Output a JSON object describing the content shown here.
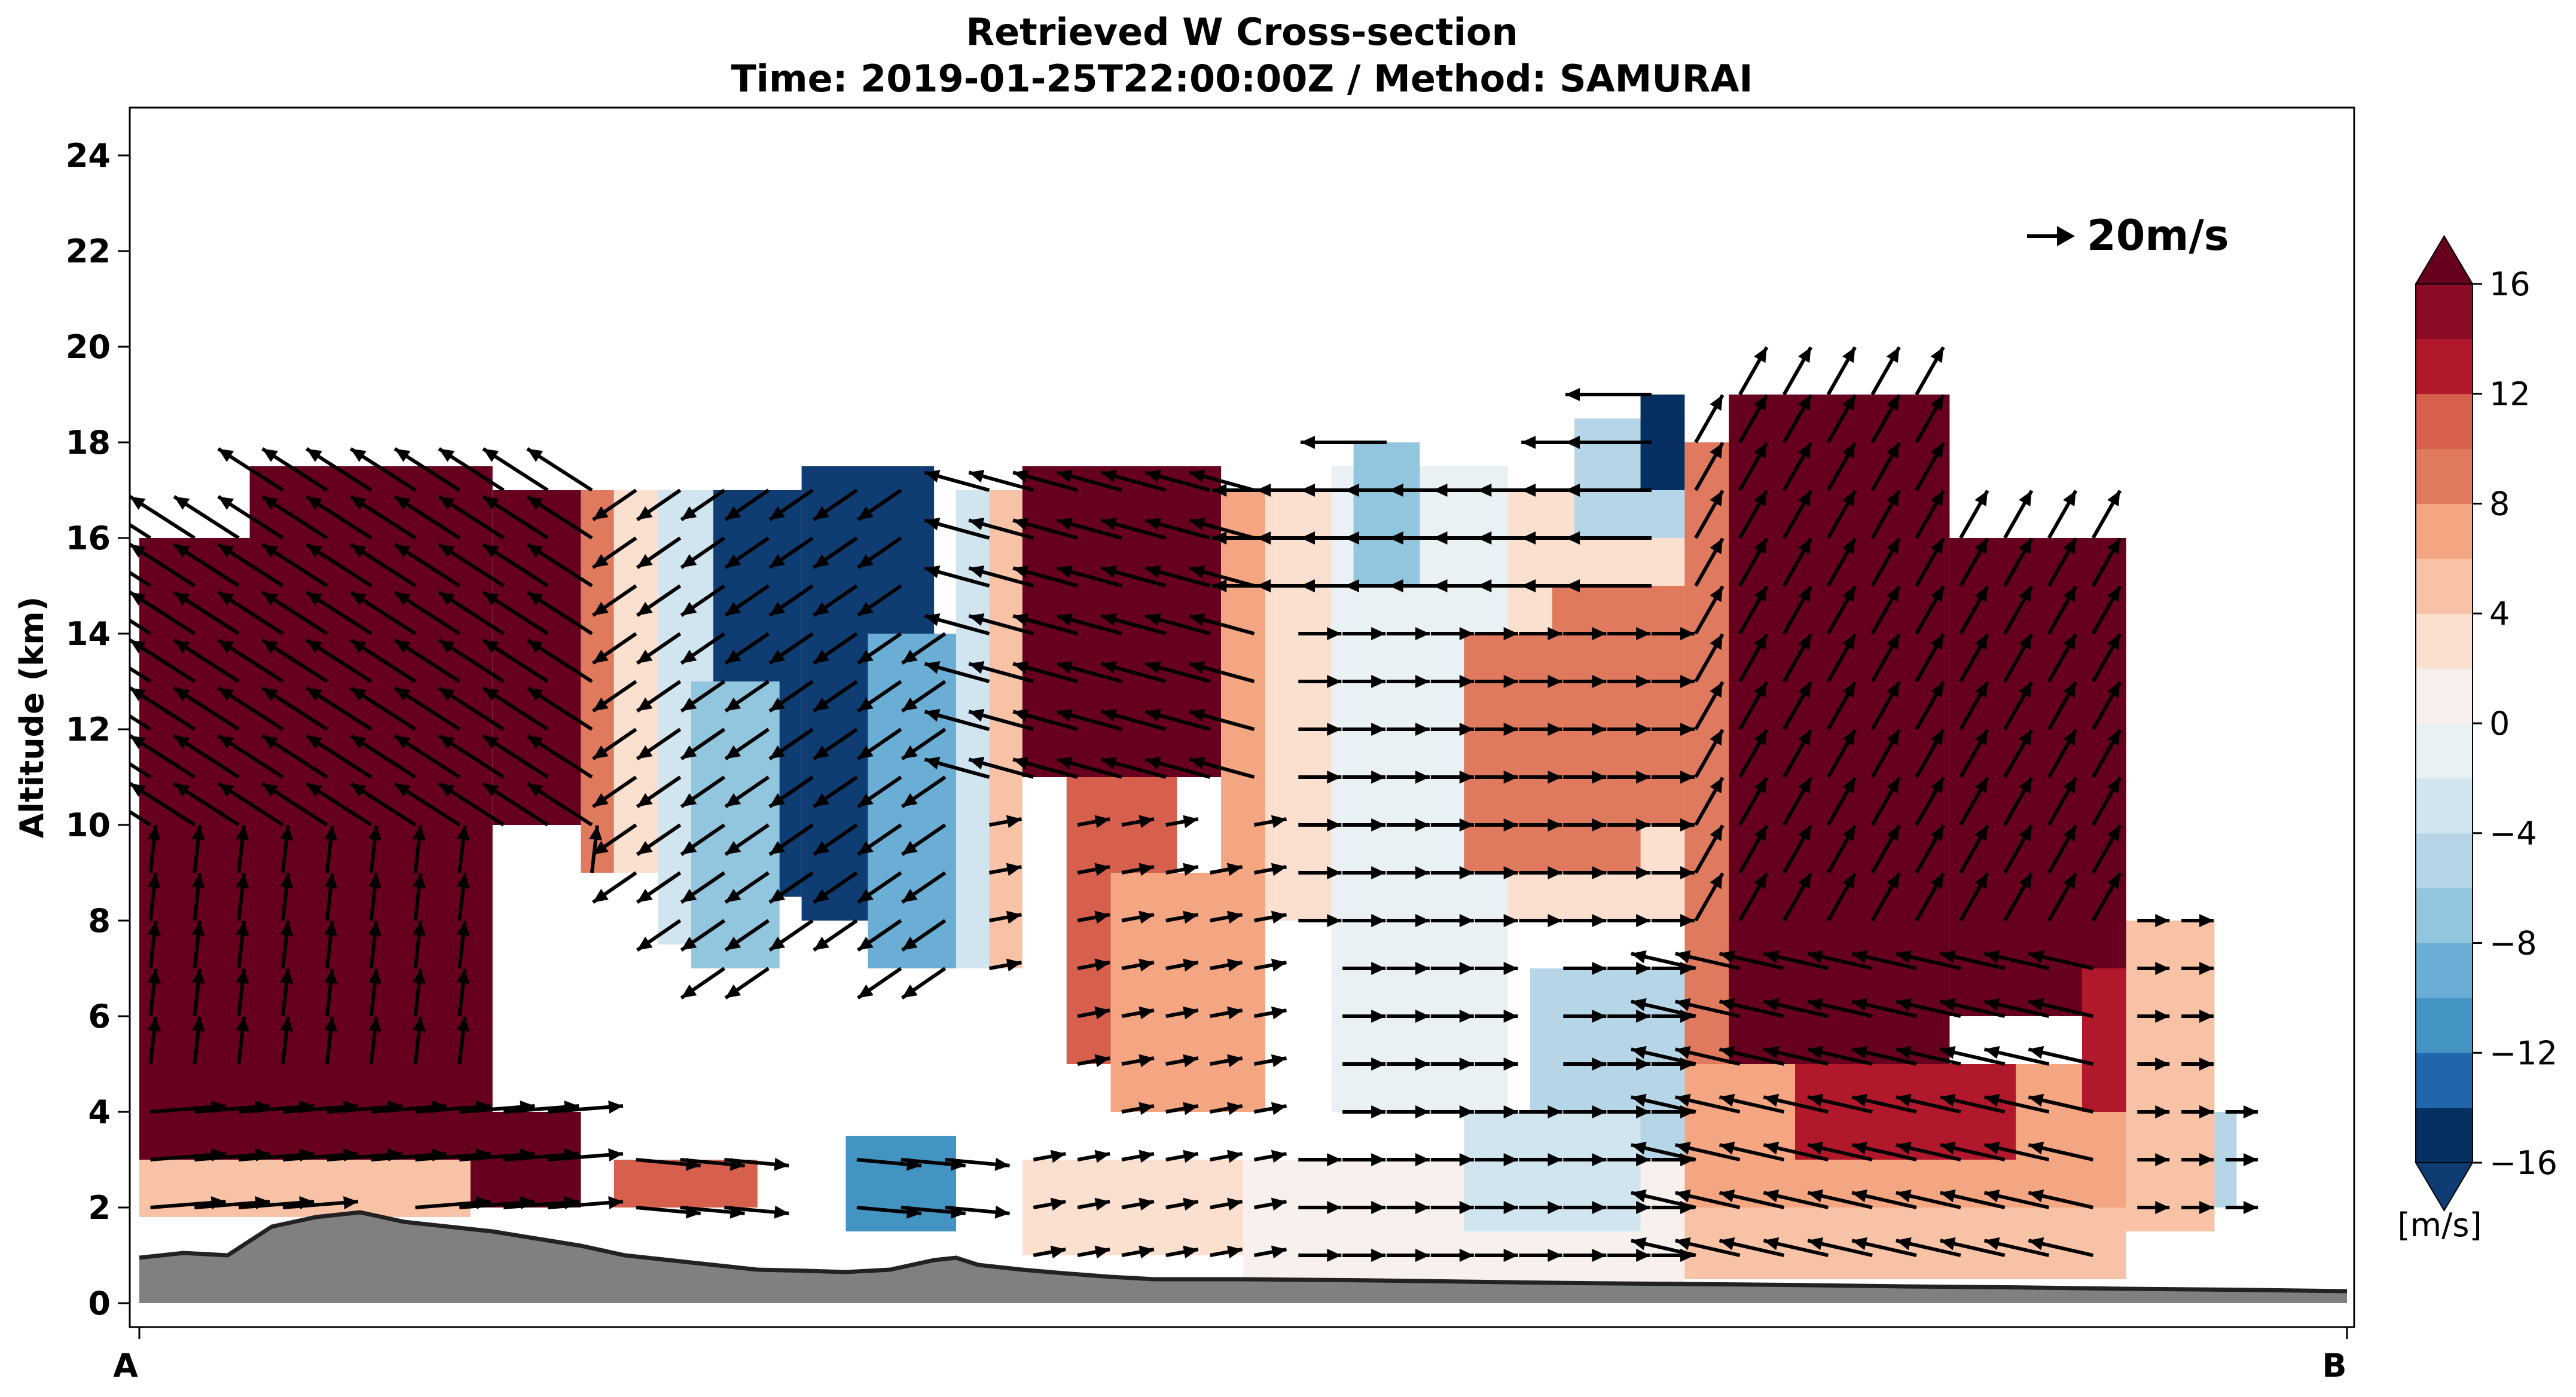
{
  "chart_data": {
    "type": "heatmap",
    "title": "Retrieved W Cross-section",
    "subtitle": "Time: 2019-01-25T22:00:00Z / Method: SAMURAI",
    "xlabel": "",
    "ylabel": "Altitude (km)",
    "x_tick_labels": [
      "A",
      "B"
    ],
    "xlim": [
      0,
      1
    ],
    "ylim": [
      -0.5,
      25
    ],
    "y_ticks": [
      0,
      2,
      4,
      6,
      8,
      10,
      12,
      14,
      16,
      18,
      20,
      22,
      24
    ],
    "grid": false,
    "colorbar": {
      "label": "[m/s]",
      "levels": [
        -16,
        -14,
        -12,
        -10,
        -8,
        -6,
        -4,
        -2,
        0,
        2,
        4,
        6,
        8,
        10,
        12,
        14,
        16
      ],
      "tick_values": [
        -16,
        -12,
        -8,
        -4,
        0,
        4,
        8,
        12,
        16
      ],
      "tick_labels": [
        "−16",
        "−12",
        "−8",
        "−4",
        "0",
        "4",
        "8",
        "12",
        "16"
      ],
      "colors": [
        "#053061",
        "#2166ac",
        "#4393c3",
        "#6aaed6",
        "#92c5de",
        "#b6d6e8",
        "#d1e5f0",
        "#eaf1f5",
        "#f7f0ec",
        "#fbe0d0",
        "#f7c2a5",
        "#f4a582",
        "#e07a5f",
        "#d6604d",
        "#b2182b",
        "#8b0a26"
      ],
      "extend": "both",
      "under_color": "#0f3c73",
      "over_color": "#67001f"
    },
    "reference_vector": {
      "label": "20m/s",
      "magnitude_ms": 20
    },
    "terrain_color": "#808080",
    "w_field_regions": [
      {
        "x": [
          0.0,
          0.16
        ],
        "z": [
          4.0,
          16.0
        ],
        "w": 20
      },
      {
        "x": [
          0.0,
          0.03
        ],
        "z": [
          11.0,
          16.0
        ],
        "w": 20
      },
      {
        "x": [
          0.0,
          0.03
        ],
        "z": [
          4.0,
          9.0
        ],
        "w": 20
      },
      {
        "x": [
          0.05,
          0.16
        ],
        "z": [
          16.0,
          17.5
        ],
        "w": 20
      },
      {
        "x": [
          0.0,
          0.2
        ],
        "z": [
          2.0,
          4.0
        ],
        "w": 20
      },
      {
        "x": [
          0.0,
          0.15
        ],
        "z": [
          1.8,
          3.0
        ],
        "w": 4
      },
      {
        "x": [
          0.16,
          0.2
        ],
        "z": [
          10.0,
          17.0
        ],
        "w": 20
      },
      {
        "x": [
          0.2,
          0.215
        ],
        "z": [
          9.0,
          17.0
        ],
        "w": 8
      },
      {
        "x": [
          0.215,
          0.235
        ],
        "z": [
          9.0,
          17.0
        ],
        "w": 2
      },
      {
        "x": [
          0.235,
          0.26
        ],
        "z": [
          7.5,
          17.0
        ],
        "w": -4
      },
      {
        "x": [
          0.26,
          0.3
        ],
        "z": [
          8.5,
          17.0
        ],
        "w": -17
      },
      {
        "x": [
          0.25,
          0.29
        ],
        "z": [
          7.0,
          13.0
        ],
        "w": -8
      },
      {
        "x": [
          0.3,
          0.36
        ],
        "z": [
          8.0,
          17.5
        ],
        "w": -18
      },
      {
        "x": [
          0.33,
          0.37
        ],
        "z": [
          7.0,
          14.0
        ],
        "w": -10
      },
      {
        "x": [
          0.37,
          0.385
        ],
        "z": [
          7.0,
          17.0
        ],
        "w": -4
      },
      {
        "x": [
          0.385,
          0.4
        ],
        "z": [
          7.0,
          17.0
        ],
        "w": 4
      },
      {
        "x": [
          0.4,
          0.49
        ],
        "z": [
          11.0,
          17.5
        ],
        "w": 20
      },
      {
        "x": [
          0.42,
          0.47
        ],
        "z": [
          5.0,
          11.0
        ],
        "w": 10
      },
      {
        "x": [
          0.44,
          0.49
        ],
        "z": [
          4.0,
          9.0
        ],
        "w": 6
      },
      {
        "x": [
          0.49,
          0.51
        ],
        "z": [
          4.0,
          17.0
        ],
        "w": 6
      },
      {
        "x": [
          0.51,
          0.7
        ],
        "z": [
          8.0,
          17.0
        ],
        "w": 2
      },
      {
        "x": [
          0.54,
          0.62
        ],
        "z": [
          4.0,
          17.5
        ],
        "w": -2
      },
      {
        "x": [
          0.55,
          0.58
        ],
        "z": [
          15.0,
          18.0
        ],
        "w": -8
      },
      {
        "x": [
          0.6,
          0.68
        ],
        "z": [
          9.0,
          14.0
        ],
        "w": 8
      },
      {
        "x": [
          0.64,
          0.7
        ],
        "z": [
          10.0,
          15.0
        ],
        "w": 8
      },
      {
        "x": [
          0.63,
          0.7
        ],
        "z": [
          3.0,
          7.0
        ],
        "w": -6
      },
      {
        "x": [
          0.65,
          0.7
        ],
        "z": [
          16.0,
          18.5
        ],
        "w": -6
      },
      {
        "x": [
          0.68,
          0.7
        ],
        "z": [
          17.0,
          19.0
        ],
        "w": -16
      },
      {
        "x": [
          0.7,
          0.72
        ],
        "z": [
          5.0,
          18.0
        ],
        "w": 8
      },
      {
        "x": [
          0.72,
          0.82
        ],
        "z": [
          4.0,
          19.0
        ],
        "w": 20
      },
      {
        "x": [
          0.82,
          0.9
        ],
        "z": [
          6.0,
          16.0
        ],
        "w": 20
      },
      {
        "x": [
          0.7,
          0.9
        ],
        "z": [
          2.0,
          5.0
        ],
        "w": 6
      },
      {
        "x": [
          0.75,
          0.85
        ],
        "z": [
          3.0,
          5.0
        ],
        "w": 12
      },
      {
        "x": [
          0.88,
          0.92
        ],
        "z": [
          4.0,
          7.0
        ],
        "w": 12
      },
      {
        "x": [
          0.9,
          0.94
        ],
        "z": [
          1.5,
          8.0
        ],
        "w": 4
      },
      {
        "x": [
          0.215,
          0.28
        ],
        "z": [
          2.0,
          3.0
        ],
        "w": 10
      },
      {
        "x": [
          0.32,
          0.37
        ],
        "z": [
          1.5,
          3.5
        ],
        "w": -12
      },
      {
        "x": [
          0.4,
          0.5
        ],
        "z": [
          1.0,
          3.0
        ],
        "w": 2
      },
      {
        "x": [
          0.5,
          0.7
        ],
        "z": [
          0.0,
          3.0
        ],
        "w": 0
      },
      {
        "x": [
          0.6,
          0.68
        ],
        "z": [
          1.5,
          4.0
        ],
        "w": -4
      },
      {
        "x": [
          0.7,
          0.9
        ],
        "z": [
          0.5,
          2.0
        ],
        "w": 4
      },
      {
        "x": [
          0.94,
          0.95
        ],
        "z": [
          2.0,
          4.0
        ],
        "w": -6
      }
    ],
    "terrain_profile": {
      "x": [
        0.0,
        0.02,
        0.04,
        0.06,
        0.08,
        0.1,
        0.12,
        0.14,
        0.16,
        0.18,
        0.2,
        0.22,
        0.24,
        0.26,
        0.28,
        0.3,
        0.32,
        0.34,
        0.36,
        0.37,
        0.38,
        0.39,
        0.4,
        0.42,
        0.44,
        0.46,
        0.48,
        0.5,
        0.55,
        0.6,
        0.65,
        0.7,
        0.75,
        0.8,
        0.85,
        0.9,
        0.95,
        1.0
      ],
      "z": [
        0.95,
        1.05,
        1.0,
        1.6,
        1.8,
        1.9,
        1.7,
        1.6,
        1.5,
        1.35,
        1.2,
        1.0,
        0.9,
        0.8,
        0.7,
        0.68,
        0.65,
        0.7,
        0.9,
        0.95,
        0.8,
        0.75,
        0.7,
        0.62,
        0.55,
        0.5,
        0.5,
        0.5,
        0.48,
        0.45,
        0.42,
        0.4,
        0.38,
        0.35,
        0.33,
        0.3,
        0.28,
        0.25
      ]
    },
    "wind_vectors": {
      "x_columns": [
        0.005,
        0.025,
        0.045,
        0.065,
        0.085,
        0.105,
        0.125,
        0.145,
        0.165,
        0.185,
        0.205,
        0.225,
        0.245,
        0.265,
        0.285,
        0.305,
        0.325,
        0.345,
        0.365,
        0.385,
        0.405,
        0.425,
        0.445,
        0.465,
        0.485,
        0.505,
        0.525,
        0.545,
        0.565,
        0.585,
        0.605,
        0.625,
        0.645,
        0.665,
        0.685,
        0.705,
        0.725,
        0.745,
        0.765,
        0.785,
        0.805,
        0.825,
        0.845,
        0.865,
        0.885,
        0.905,
        0.925,
        0.945
      ],
      "z_rows": [
        0,
        1,
        2,
        3,
        4,
        5,
        6,
        7,
        8,
        9,
        10,
        11,
        12,
        13,
        14,
        15,
        16,
        17,
        18,
        19,
        20,
        21,
        22,
        23,
        24
      ],
      "units": "m/s"
    }
  }
}
